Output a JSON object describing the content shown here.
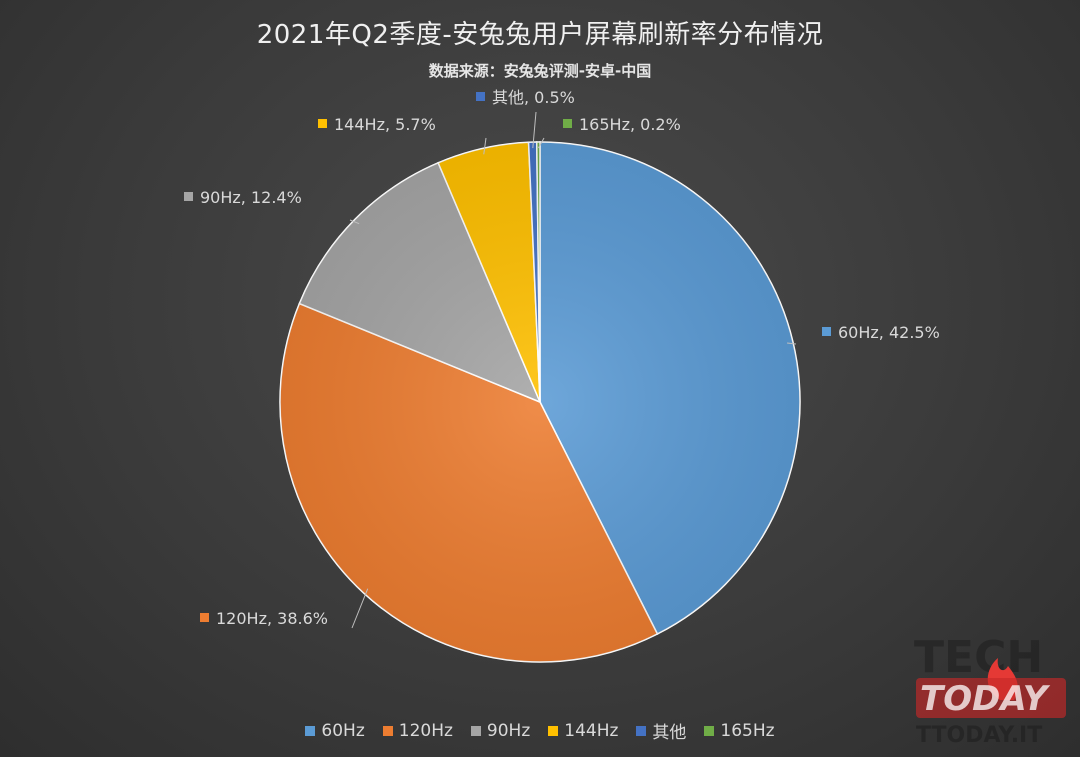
{
  "chart_data": {
    "type": "pie",
    "title": "2021年Q2季度-安兔兔用户屏幕刷新率分布情况",
    "subtitle": "数据来源：安兔兔评测-安卓-中国",
    "slices": [
      {
        "name": "60Hz",
        "value": 42.5,
        "label": "60Hz, 42.5%",
        "color": "#5b9bd5"
      },
      {
        "name": "120Hz",
        "value": 38.6,
        "label": "120Hz, 38.6%",
        "color": "#ed7d31"
      },
      {
        "name": "90Hz",
        "value": 12.4,
        "label": "90Hz, 12.4%",
        "color": "#a5a5a5"
      },
      {
        "name": "144Hz",
        "value": 5.7,
        "label": "144Hz, 5.7%",
        "color": "#ffc000"
      },
      {
        "name": "其他",
        "value": 0.5,
        "label": "其他, 0.5%",
        "color": "#4472c4"
      },
      {
        "name": "165Hz",
        "value": 0.2,
        "label": "165Hz, 0.2%",
        "color": "#70ad47"
      }
    ],
    "legend": {
      "placement": "bottom"
    }
  },
  "watermark": {
    "line1": "TECH",
    "line2": "TODAY",
    "line3": "TTODAY.IT"
  }
}
